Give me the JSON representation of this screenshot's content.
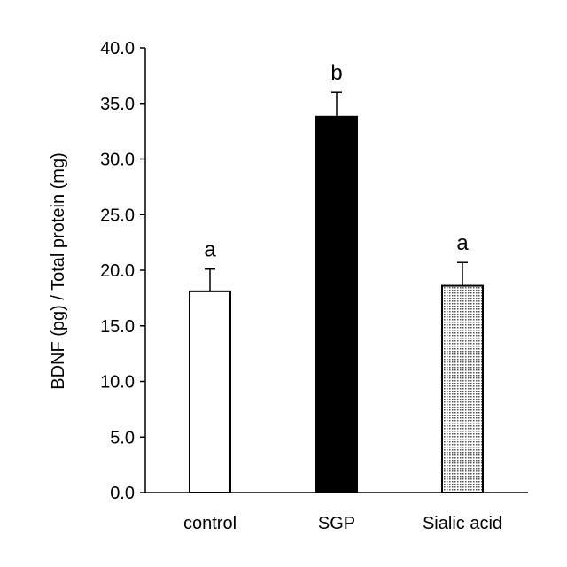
{
  "chart_data": {
    "type": "bar",
    "title": "",
    "xlabel": "",
    "ylabel": "BDNF (pg) / Total protein (mg)",
    "ylim": [
      0,
      40
    ],
    "yticks": [
      0,
      5,
      10,
      15,
      20,
      25,
      30,
      35,
      40
    ],
    "ytick_labels": [
      "0.0",
      "5.0",
      "10.0",
      "15.0",
      "20.0",
      "25.0",
      "30.0",
      "35.0",
      "40.0"
    ],
    "grid": false,
    "legend": "none",
    "categories": [
      "control",
      "SGP",
      "Sialic acid"
    ],
    "values": [
      18.1,
      33.8,
      18.6
    ],
    "error_upper": [
      2.0,
      2.2,
      2.1
    ],
    "significance_labels": [
      "a",
      "b",
      "a"
    ],
    "fills": [
      "white",
      "black",
      "dotted"
    ]
  },
  "colors": {
    "axis": "#000000",
    "bar_stroke": "#000000",
    "bar_solid": "#000000",
    "bar_open": "#ffffff",
    "bar_dots": "#555555"
  }
}
